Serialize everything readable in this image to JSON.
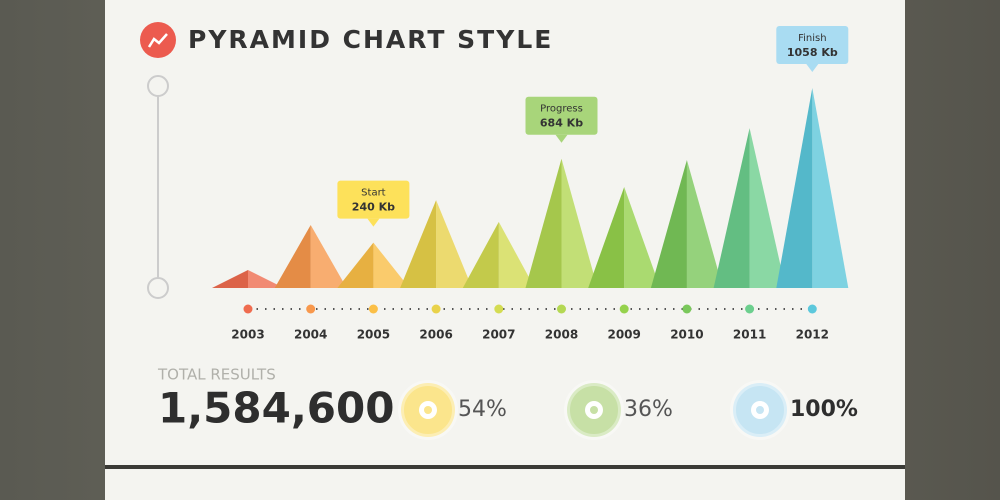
{
  "chart_data": {
    "type": "pyramid",
    "title": "PYRAMID CHART STYLE",
    "categories": [
      "2003",
      "2004",
      "2005",
      "2006",
      "2007",
      "2008",
      "2009",
      "2010",
      "2011",
      "2012"
    ],
    "values": [
      95,
      333,
      240,
      465,
      350,
      684,
      534,
      677,
      846,
      1058
    ],
    "value_labels": [
      null,
      null,
      "240 Kb",
      null,
      null,
      "684 Kb",
      null,
      null,
      null,
      "1058 Kb"
    ],
    "point_labels": [
      null,
      null,
      "Start",
      null,
      null,
      "Progress",
      null,
      null,
      null,
      "Finish"
    ],
    "colors": [
      "#ef6c4f",
      "#f8984c",
      "#fbbf47",
      "#e9d24a",
      "#d4dc52",
      "#b4d853",
      "#95d24c",
      "#7ac85b",
      "#6ccf8e",
      "#5cc8dc"
    ],
    "label_colors": [
      "#fde15a",
      "#a8d57a",
      "#a9dcf2"
    ]
  },
  "stats": {
    "label": "TOTAL RESULTS",
    "total": "1,584,600",
    "items": [
      {
        "value": 54,
        "label": "54%",
        "color": "#fbe58c"
      },
      {
        "value": 36,
        "label": "36%",
        "color": "#c7e0a6"
      },
      {
        "value": 100,
        "label": "100%",
        "color": "#c6e5f3"
      }
    ]
  }
}
